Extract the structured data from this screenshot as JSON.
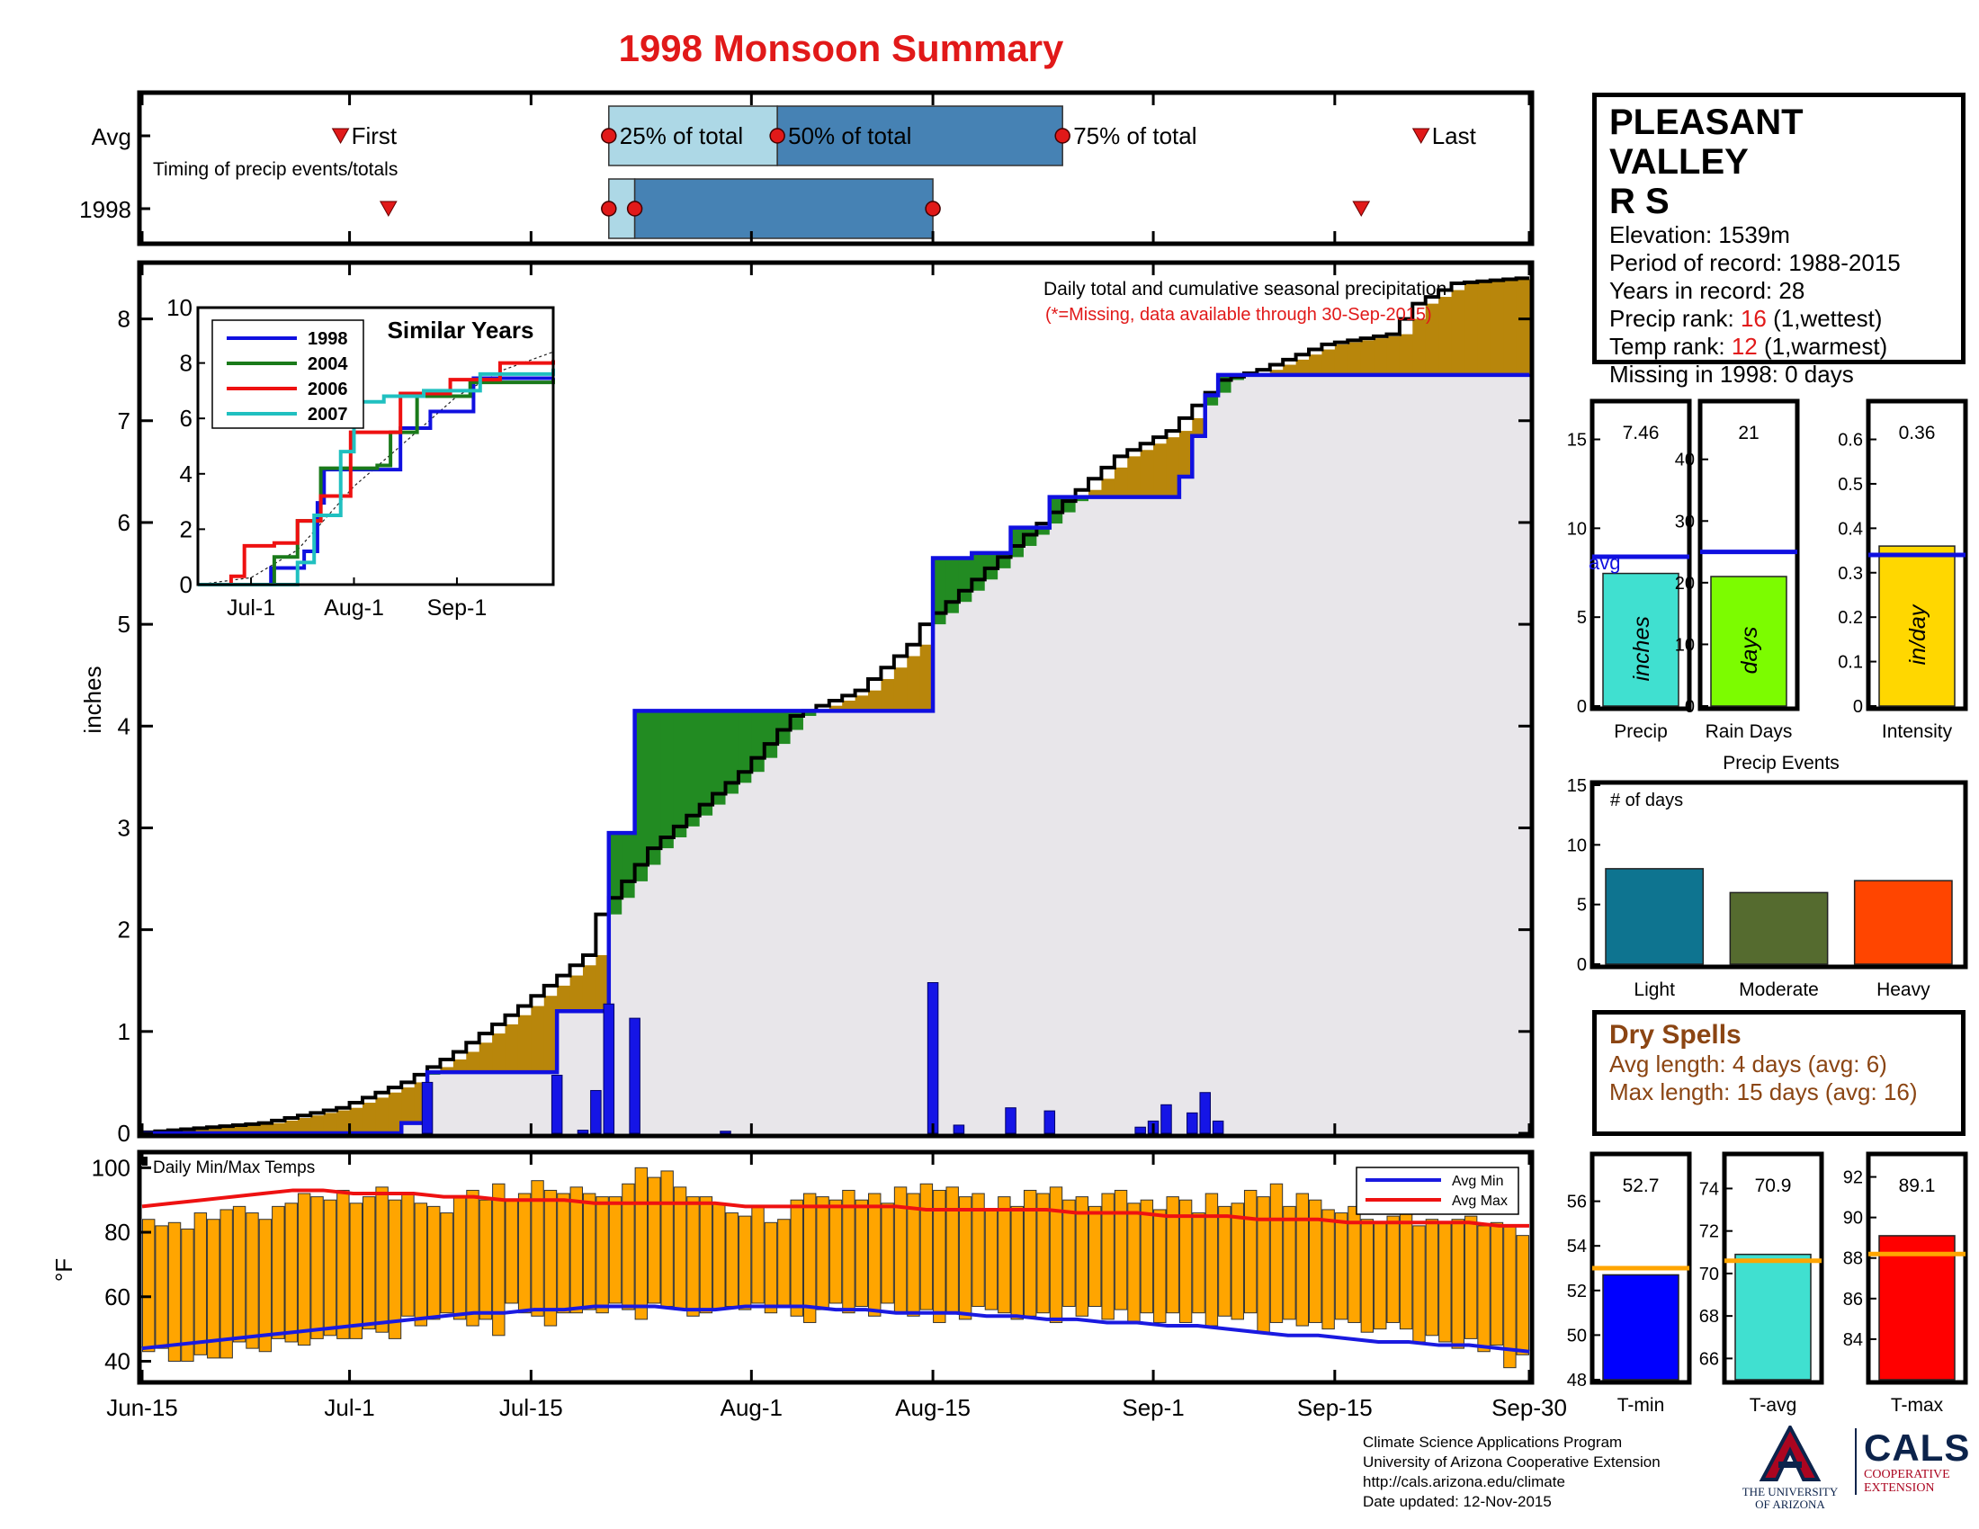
{
  "title": "1998 Monsoon Summary",
  "station": {
    "name_line1": "PLEASANT VALLEY",
    "name_line2": "R S",
    "elevation": "Elevation: 1539m",
    "period": "Period of record: 1988-2015",
    "years": "Years in record: 28",
    "precip_rank_label": "Precip rank: ",
    "precip_rank_value": "16",
    "precip_rank_note": " (1,wettest)",
    "temp_rank_label": "Temp rank: ",
    "temp_rank_value": "12",
    "temp_rank_note": " (1,warmest)",
    "missing": "Missing in 1998: 0 days"
  },
  "dry_spells": {
    "title": "Dry Spells",
    "avg_length": "Avg length: 4 days (avg: 6)",
    "max_length": "Max length: 15 days (avg: 16)"
  },
  "credits": {
    "line1": "Climate Science Applications Program",
    "line2": "University of Arizona Cooperative Extension",
    "line3": "http://cals.arizona.edu/climate",
    "line4": "Date updated: 12-Nov-2015"
  },
  "logos": {
    "ua_mark": "A",
    "ua_line1": "THE UNIVERSITY",
    "ua_line2": "OF ARIZONA",
    "cals_mark": "CALS",
    "cals_line1": "COOPERATIVE",
    "cals_line2": "EXTENSION"
  },
  "colors": {
    "title": "#e11919",
    "year_line": "#1010e0",
    "above_avg": "#228b22",
    "below_avg": "#b8860b",
    "avg_fill": "#e8e6ea",
    "temp_bar": "#ffa500",
    "avg_min": "#1a1ae0",
    "avg_max": "#ee1111"
  },
  "chart_data": [
    {
      "id": "timing",
      "type": "timing",
      "row_labels": [
        "Avg",
        "1998"
      ],
      "caption": "Timing of precip events/totals",
      "avg": {
        "first": "2025-07-01",
        "p25": "2025-07-21",
        "p50": "2025-08-03",
        "p75": "2025-08-25",
        "last": "2025-09-22",
        "labels": {
          "first": "First",
          "p25": "25% of total",
          "p50": "50% of total",
          "p75": "75% of total",
          "last": "Last"
        }
      },
      "year": {
        "first": "2025-07-04",
        "p25": "2025-07-21",
        "p50": "2025-07-23",
        "p75": "2025-08-15",
        "last": "2025-09-16"
      }
    },
    {
      "id": "main",
      "type": "area",
      "ylabel": "inches",
      "ylim": [
        0,
        8.5
      ],
      "yticks": [
        0,
        1,
        2,
        3,
        4,
        5,
        6,
        7,
        8
      ],
      "xlim": [
        "2025-06-15",
        "2025-09-30"
      ],
      "xticks": [
        {
          "label": "Jun-15",
          "date": "2025-06-15"
        },
        {
          "label": "Jul-1",
          "date": "2025-07-01"
        },
        {
          "label": "Jul-15",
          "date": "2025-07-15"
        },
        {
          "label": "Aug-1",
          "date": "2025-08-01"
        },
        {
          "label": "Aug-15",
          "date": "2025-08-15"
        },
        {
          "label": "Sep-1",
          "date": "2025-09-01"
        },
        {
          "label": "Sep-15",
          "date": "2025-09-15"
        },
        {
          "label": "Sep-30",
          "date": "2025-09-30"
        }
      ],
      "annotation": "Daily total and cumulative seasonal precipitation",
      "annotation2": "(*=Missing, data available through 30-Sep-2015)",
      "avg_cumulative": [
        {
          "date": "2025-06-15",
          "value": 0.0
        },
        {
          "date": "2025-06-20",
          "value": 0.05
        },
        {
          "date": "2025-06-25",
          "value": 0.1
        },
        {
          "date": "2025-07-01",
          "value": 0.25
        },
        {
          "date": "2025-07-06",
          "value": 0.5
        },
        {
          "date": "2025-07-10",
          "value": 0.8
        },
        {
          "date": "2025-07-15",
          "value": 1.25
        },
        {
          "date": "2025-07-20",
          "value": 1.75
        },
        {
          "date": "2025-07-21",
          "value": 2.15
        },
        {
          "date": "2025-07-25",
          "value": 2.8
        },
        {
          "date": "2025-08-01",
          "value": 3.55
        },
        {
          "date": "2025-08-05",
          "value": 4.1
        },
        {
          "date": "2025-08-10",
          "value": 4.35
        },
        {
          "date": "2025-08-14",
          "value": 4.8
        },
        {
          "date": "2025-08-15",
          "value": 5.0
        },
        {
          "date": "2025-08-20",
          "value": 5.55
        },
        {
          "date": "2025-08-25",
          "value": 6.1
        },
        {
          "date": "2025-08-30",
          "value": 6.65
        },
        {
          "date": "2025-09-03",
          "value": 6.9
        },
        {
          "date": "2025-09-07",
          "value": 7.4
        },
        {
          "date": "2025-09-10",
          "value": 7.5
        },
        {
          "date": "2025-09-15",
          "value": 7.75
        },
        {
          "date": "2025-09-20",
          "value": 7.85
        },
        {
          "date": "2025-09-22",
          "value": 8.15
        },
        {
          "date": "2025-09-25",
          "value": 8.35
        },
        {
          "date": "2025-09-30",
          "value": 8.4
        }
      ],
      "year_cumulative": [
        {
          "date": "2025-06-15",
          "value": 0.0
        },
        {
          "date": "2025-07-04",
          "value": 0.0
        },
        {
          "date": "2025-07-05",
          "value": 0.1
        },
        {
          "date": "2025-07-07",
          "value": 0.6
        },
        {
          "date": "2025-07-17",
          "value": 0.6
        },
        {
          "date": "2025-07-17",
          "value": 1.2
        },
        {
          "date": "2025-07-20",
          "value": 1.2
        },
        {
          "date": "2025-07-21",
          "value": 1.65
        },
        {
          "date": "2025-07-21",
          "value": 2.95
        },
        {
          "date": "2025-07-23",
          "value": 2.95
        },
        {
          "date": "2025-07-23",
          "value": 4.15
        },
        {
          "date": "2025-08-15",
          "value": 4.18
        },
        {
          "date": "2025-08-15",
          "value": 5.65
        },
        {
          "date": "2025-08-18",
          "value": 5.7
        },
        {
          "date": "2025-08-21",
          "value": 5.95
        },
        {
          "date": "2025-08-24",
          "value": 6.25
        },
        {
          "date": "2025-08-28",
          "value": 6.25
        },
        {
          "date": "2025-09-03",
          "value": 6.45
        },
        {
          "date": "2025-09-04",
          "value": 6.85
        },
        {
          "date": "2025-09-05",
          "value": 7.25
        },
        {
          "date": "2025-09-06",
          "value": 7.45
        },
        {
          "date": "2025-09-30",
          "value": 7.46
        }
      ],
      "daily": [
        {
          "date": "2025-07-07",
          "value": 0.5
        },
        {
          "date": "2025-07-17",
          "value": 0.57
        },
        {
          "date": "2025-07-19",
          "value": 0.03
        },
        {
          "date": "2025-07-20",
          "value": 0.42
        },
        {
          "date": "2025-07-21",
          "value": 1.27
        },
        {
          "date": "2025-07-23",
          "value": 1.13
        },
        {
          "date": "2025-07-30",
          "value": 0.02
        },
        {
          "date": "2025-08-15",
          "value": 1.48
        },
        {
          "date": "2025-08-17",
          "value": 0.08
        },
        {
          "date": "2025-08-21",
          "value": 0.25
        },
        {
          "date": "2025-08-24",
          "value": 0.22
        },
        {
          "date": "2025-08-31",
          "value": 0.06
        },
        {
          "date": "2025-09-01",
          "value": 0.12
        },
        {
          "date": "2025-09-02",
          "value": 0.28
        },
        {
          "date": "2025-09-04",
          "value": 0.2
        },
        {
          "date": "2025-09-05",
          "value": 0.4
        },
        {
          "date": "2025-09-06",
          "value": 0.12
        }
      ]
    },
    {
      "id": "similar",
      "type": "line",
      "title": "Similar Years",
      "ylim": [
        0,
        10
      ],
      "yticks": [
        0,
        2,
        4,
        6,
        8,
        10
      ],
      "xlim": [
        "2025-06-15",
        "2025-09-30"
      ],
      "xticks": [
        {
          "label": "Jul-1",
          "date": "2025-07-01"
        },
        {
          "label": "Aug-1",
          "date": "2025-08-01"
        },
        {
          "label": "Sep-1",
          "date": "2025-09-01"
        }
      ],
      "series": [
        {
          "name": "1998",
          "color": "#1010e0",
          "points": [
            [
              "2025-06-15",
              0
            ],
            [
              "2025-07-04",
              0
            ],
            [
              "2025-07-07",
              0.6
            ],
            [
              "2025-07-17",
              1.2
            ],
            [
              "2025-07-21",
              2.95
            ],
            [
              "2025-07-23",
              4.15
            ],
            [
              "2025-08-15",
              5.65
            ],
            [
              "2025-08-24",
              6.25
            ],
            [
              "2025-09-06",
              7.45
            ],
            [
              "2025-09-30",
              7.46
            ]
          ]
        },
        {
          "name": "2004",
          "color": "#1a7a1a",
          "points": [
            [
              "2025-06-15",
              0
            ],
            [
              "2025-07-05",
              0
            ],
            [
              "2025-07-08",
              1.0
            ],
            [
              "2025-07-15",
              2.3
            ],
            [
              "2025-07-22",
              4.2
            ],
            [
              "2025-08-08",
              4.3
            ],
            [
              "2025-08-12",
              5.5
            ],
            [
              "2025-08-20",
              6.8
            ],
            [
              "2025-09-05",
              7.3
            ],
            [
              "2025-09-30",
              7.4
            ]
          ]
        },
        {
          "name": "2006",
          "color": "#ee1111",
          "points": [
            [
              "2025-06-15",
              0
            ],
            [
              "2025-06-25",
              0.3
            ],
            [
              "2025-06-29",
              1.4
            ],
            [
              "2025-07-08",
              1.5
            ],
            [
              "2025-07-15",
              2.3
            ],
            [
              "2025-07-22",
              3.2
            ],
            [
              "2025-07-31",
              5.5
            ],
            [
              "2025-08-15",
              6.9
            ],
            [
              "2025-08-30",
              7.4
            ],
            [
              "2025-09-14",
              8.0
            ],
            [
              "2025-09-30",
              8.1
            ]
          ]
        },
        {
          "name": "2007",
          "color": "#20c0c0",
          "points": [
            [
              "2025-06-15",
              0
            ],
            [
              "2025-07-10",
              0
            ],
            [
              "2025-07-15",
              0.8
            ],
            [
              "2025-07-20",
              2.5
            ],
            [
              "2025-07-28",
              4.8
            ],
            [
              "2025-08-01",
              6.6
            ],
            [
              "2025-08-10",
              6.8
            ],
            [
              "2025-08-22",
              7.0
            ],
            [
              "2025-09-08",
              7.6
            ],
            [
              "2025-09-30",
              7.8
            ]
          ]
        }
      ],
      "average": [
        [
          "2025-06-15",
          0
        ],
        [
          "2025-07-01",
          0.25
        ],
        [
          "2025-07-15",
          1.25
        ],
        [
          "2025-08-01",
          3.55
        ],
        [
          "2025-08-15",
          5.0
        ],
        [
          "2025-09-01",
          6.8
        ],
        [
          "2025-09-15",
          7.75
        ],
        [
          "2025-09-30",
          8.4
        ]
      ]
    },
    {
      "id": "temps",
      "type": "bar",
      "ylabel": "°F",
      "legend_label": "Daily Min/Max Temps",
      "ylim": [
        34,
        104
      ],
      "yticks": [
        40,
        60,
        80,
        100
      ],
      "series_names": [
        "Avg Min",
        "Avg Max"
      ],
      "daily_min": [
        43,
        44,
        40,
        40,
        42,
        41,
        41,
        46,
        44,
        43,
        47,
        46,
        45,
        47,
        48,
        47,
        47,
        50,
        49,
        47,
        54,
        51,
        53,
        55,
        53,
        51,
        53,
        48,
        58,
        55,
        54,
        51,
        55,
        55,
        56,
        55,
        58,
        56,
        53,
        58,
        57,
        56,
        54,
        55,
        56,
        57,
        56,
        58,
        55,
        57,
        54,
        52,
        56,
        58,
        55,
        57,
        54,
        58,
        55,
        54,
        56,
        52,
        55,
        53,
        57,
        56,
        55,
        53,
        54,
        55,
        52,
        57,
        54,
        57,
        53,
        56,
        52,
        55,
        52,
        55,
        52,
        55,
        51,
        54,
        53,
        55,
        49,
        52,
        53,
        51,
        52,
        50,
        53,
        52,
        49,
        50,
        52,
        50,
        46,
        48,
        46,
        44,
        47,
        43,
        45,
        38,
        42
      ],
      "daily_max": [
        84,
        82,
        83,
        81,
        86,
        84,
        87,
        88,
        86,
        84,
        88,
        89,
        92,
        91,
        90,
        93,
        89,
        91,
        94,
        90,
        92,
        89,
        88,
        86,
        91,
        93,
        90,
        95,
        90,
        92,
        96,
        93,
        92,
        94,
        92,
        91,
        91,
        95,
        100,
        97,
        99,
        94,
        91,
        91,
        89,
        86,
        85,
        88,
        83,
        84,
        90,
        92,
        91,
        90,
        93,
        90,
        92,
        89,
        94,
        92,
        95,
        93,
        94,
        91,
        92,
        87,
        91,
        88,
        93,
        92,
        94,
        90,
        91,
        88,
        92,
        93,
        89,
        90,
        87,
        91,
        90,
        86,
        92,
        88,
        89,
        93,
        91,
        95,
        88,
        92,
        90,
        87,
        86,
        88,
        84,
        83,
        85,
        86,
        82,
        84,
        83,
        84,
        85,
        82,
        83,
        82,
        79
      ],
      "avg_min": [
        44,
        45,
        46,
        47,
        48,
        49,
        50,
        51,
        52,
        53,
        54,
        55,
        55,
        56,
        56,
        57,
        57,
        57,
        56,
        56,
        57,
        57,
        57,
        56,
        56,
        55,
        55,
        55,
        54,
        54,
        53,
        53,
        52,
        52,
        51,
        51,
        50,
        49,
        48,
        48,
        47,
        46,
        46,
        45,
        45,
        44,
        43
      ],
      "avg_max": [
        88,
        89,
        90,
        91,
        92,
        93,
        93,
        92,
        92,
        92,
        91,
        91,
        90,
        90,
        90,
        89,
        89,
        89,
        89,
        89,
        88,
        88,
        88,
        88,
        88,
        88,
        87,
        87,
        87,
        87,
        87,
        86,
        86,
        86,
        85,
        85,
        85,
        84,
        84,
        84,
        83,
        83,
        83,
        83,
        83,
        82,
        82
      ]
    },
    {
      "id": "precip_stats",
      "type": "bar",
      "panels": [
        {
          "label": "Precip",
          "value": 7.46,
          "value_text": "7.46",
          "avg": 8.4,
          "ylim": [
            0,
            17
          ],
          "yticks": [
            0,
            5,
            10,
            15
          ],
          "unit": "inches",
          "color": "#40e0d0",
          "avg_label": "avg"
        },
        {
          "label": "Rain Days",
          "value": 21,
          "value_text": "21",
          "avg": 25,
          "ylim": [
            0,
            49
          ],
          "yticks": [
            0,
            10,
            20,
            30,
            40
          ],
          "unit": "days",
          "color": "#7cfc00"
        },
        {
          "label": "Intensity",
          "value": 0.36,
          "value_text": "0.36",
          "avg": 0.34,
          "ylim": [
            0,
            0.68
          ],
          "yticks": [
            0,
            0.1,
            0.2,
            0.3,
            0.4,
            0.5,
            0.6
          ],
          "unit": "in/day",
          "color": "#ffd700"
        }
      ]
    },
    {
      "id": "precip_events",
      "type": "bar",
      "title": "Precip Events",
      "ylabel_inside": "# of days",
      "ylim": [
        0,
        15
      ],
      "yticks": [
        0,
        5,
        10,
        15
      ],
      "categories": [
        "Light",
        "Moderate",
        "Heavy"
      ],
      "values": [
        8,
        6,
        7
      ],
      "colors": [
        "#0e7490",
        "#556b2f",
        "#ff4500"
      ]
    },
    {
      "id": "temp_stats",
      "type": "bar",
      "panels": [
        {
          "label": "T-min",
          "value": 52.7,
          "value_text": "52.7",
          "avg": 53.0,
          "ylim": [
            48,
            58
          ],
          "yticks": [
            48,
            50,
            52,
            54,
            56
          ],
          "color": "#0000ff"
        },
        {
          "label": "T-avg",
          "value": 70.9,
          "value_text": "70.9",
          "avg": 70.6,
          "ylim": [
            65,
            75.5
          ],
          "yticks": [
            66,
            68,
            70,
            72,
            74
          ],
          "color": "#40e0d0"
        },
        {
          "label": "T-max",
          "value": 89.1,
          "value_text": "89.1",
          "avg": 88.2,
          "ylim": [
            82,
            93
          ],
          "yticks": [
            84,
            86,
            88,
            90,
            92
          ],
          "color": "#ff0000"
        }
      ]
    }
  ]
}
